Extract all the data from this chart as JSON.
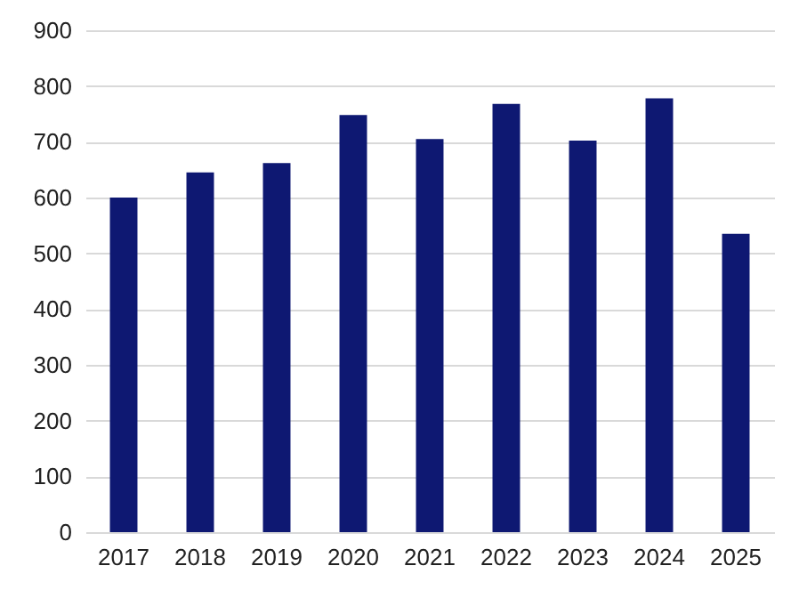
{
  "chart_data": {
    "type": "bar",
    "categories": [
      "2017",
      "2018",
      "2019",
      "2020",
      "2021",
      "2022",
      "2023",
      "2024",
      "2025"
    ],
    "values": [
      600,
      645,
      662,
      748,
      705,
      768,
      702,
      778,
      535
    ],
    "color": "#0e1872",
    "ylim": [
      0,
      900
    ],
    "yticks": [
      0,
      100,
      200,
      300,
      400,
      500,
      600,
      700,
      800,
      900
    ],
    "grid": "y"
  }
}
